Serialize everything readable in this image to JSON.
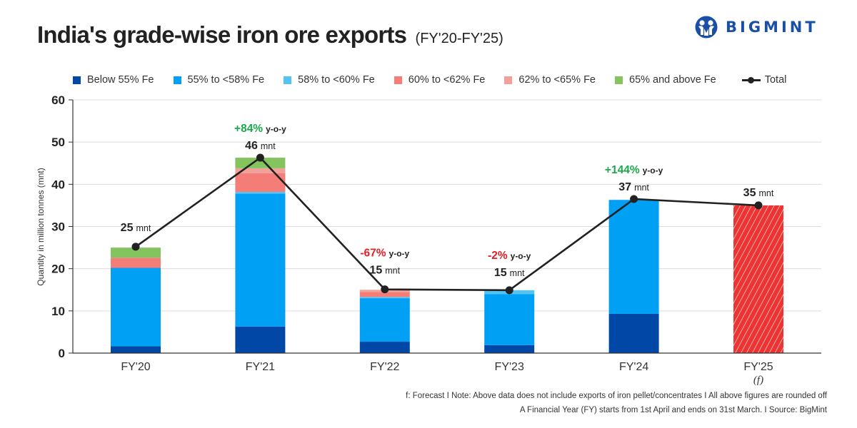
{
  "header": {
    "title": "India's grade-wise iron ore exports",
    "subtitle": "(FY'20-FY'25)",
    "logo_text": "BIGMINT"
  },
  "legend": [
    {
      "label": "Below 55% Fe",
      "color": "#0047a6"
    },
    {
      "label": "55% to <58% Fe",
      "color": "#00a0f5"
    },
    {
      "label": "58% to <60% Fe",
      "color": "#55c3f2"
    },
    {
      "label": "60% to <62% Fe",
      "color": "#f47e77"
    },
    {
      "label": "62% to <65% Fe",
      "color": "#f2a09a"
    },
    {
      "label": "65% and above Fe",
      "color": "#84c45e"
    }
  ],
  "legend_total_label": "Total",
  "footnotes": [
    "f: Forecast  I  Note: Above data does not include exports of iron pellet/concentrates  I   All above figures are rounded off",
    "A Financial Year (FY) starts from 1st April and ends on 31st March.  I  Source: BigMint"
  ],
  "chart_data": {
    "type": "bar",
    "stacked": true,
    "title": "India's grade-wise iron ore exports (FY'20-FY'25)",
    "xlabel": "",
    "ylabel": "Quantity in million tonnes (mnt)",
    "ylim": [
      0,
      60
    ],
    "yticks": [
      0,
      10,
      20,
      30,
      40,
      50,
      60
    ],
    "grid": true,
    "legend_position": "top",
    "categories": [
      "FY'20",
      "FY'21",
      "FY'22",
      "FY'23",
      "FY'24",
      "FY'25"
    ],
    "category_sublabels": [
      "",
      "",
      "",
      "",
      "",
      "(f)"
    ],
    "series": [
      {
        "name": "Below 55% Fe",
        "color": "#0047a6",
        "values": [
          1.6,
          6.3,
          2.7,
          1.9,
          9.3,
          null
        ]
      },
      {
        "name": "55% to <58% Fe",
        "color": "#00a0f5",
        "values": [
          18.6,
          31.5,
          10.3,
          12.1,
          27.0,
          null
        ]
      },
      {
        "name": "58% to <60% Fe",
        "color": "#55c3f2",
        "values": [
          0.0,
          0.4,
          0.3,
          0.9,
          0.0,
          null
        ]
      },
      {
        "name": "60% to <62% Fe",
        "color": "#f47e77",
        "values": [
          2.4,
          4.4,
          1.2,
          0.0,
          0.0,
          null
        ]
      },
      {
        "name": "62% to <65% Fe",
        "color": "#f2a09a",
        "values": [
          0.0,
          1.2,
          0.5,
          0.0,
          0.0,
          null
        ]
      },
      {
        "name": "65% and above Fe",
        "color": "#84c45e",
        "values": [
          2.4,
          2.5,
          0.0,
          0.0,
          0.0,
          null
        ]
      }
    ],
    "forecast": {
      "category": "FY'25",
      "value": 35,
      "color": "#ee3333",
      "pattern": "diagonal-hatch"
    },
    "total_line": {
      "name": "Total",
      "color": "#222222",
      "values": [
        25.2,
        46.3,
        15.1,
        14.9,
        36.5,
        35.0
      ]
    },
    "value_labels": [
      {
        "value": "25",
        "unit": "mnt"
      },
      {
        "value": "46",
        "unit": "mnt"
      },
      {
        "value": "15",
        "unit": "mnt"
      },
      {
        "value": "15",
        "unit": "mnt"
      },
      {
        "value": "37",
        "unit": "mnt"
      },
      {
        "value": "35",
        "unit": "mnt"
      }
    ],
    "yoy_labels": [
      null,
      {
        "value": "+84%",
        "suffix": "y-o-y",
        "color": "#1aa84a"
      },
      {
        "value": "-67%",
        "suffix": "y-o-y",
        "color": "#e31e24"
      },
      {
        "value": "-2%",
        "suffix": "y-o-y",
        "color": "#e31e24"
      },
      {
        "value": "+144%",
        "suffix": "y-o-y",
        "color": "#1aa84a"
      },
      null
    ]
  }
}
